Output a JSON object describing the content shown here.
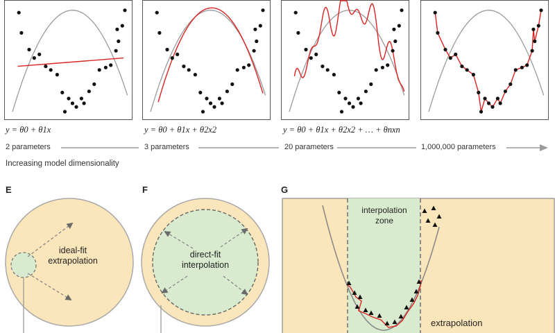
{
  "colors": {
    "fit": "#dd2222",
    "true_curve": "#9a9a9a",
    "points": "#111111",
    "arrow": "#8c8c8c",
    "circle_fill": "#fbe6bb",
    "circle_stroke": "#a8a8a8",
    "zone_fill": "#d9ebcf",
    "zone_stroke": "#6e6e6e"
  },
  "top": {
    "equations": [
      "y = θ0 + θ1x",
      "y = θ0 + θ1x + θ2x2",
      "y = θ0 + θ1x + θ2x2 + … + θnxn"
    ],
    "parameters": [
      "2 parameters",
      "3 parameters",
      "20 parameters",
      "1,000,000 parameters"
    ],
    "axis_caption": "Increasing model dimensionality"
  },
  "bottom": {
    "E": {
      "letter": "E",
      "line1": "ideal-fit",
      "line2": "extrapolation"
    },
    "F": {
      "letter": "F",
      "line1": "direct-fit",
      "line2": "interpolation"
    },
    "G": {
      "letter": "G",
      "zone_line1": "interpolation",
      "zone_line2": "zone",
      "outside": "extrapolation"
    }
  }
}
